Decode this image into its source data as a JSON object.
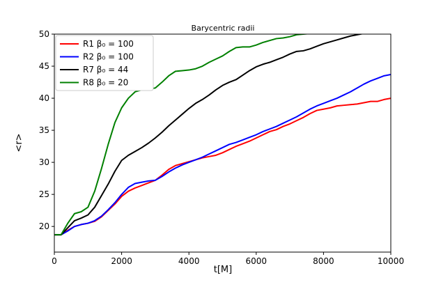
{
  "chart_data": {
    "type": "line",
    "title": "Barycentric radii",
    "xlabel": "t[M]",
    "ylabel": "<r>",
    "xlim": [
      0,
      10000
    ],
    "ylim": [
      16,
      50
    ],
    "xticks": [
      0,
      2000,
      4000,
      6000,
      8000,
      10000
    ],
    "yticks": [
      20,
      25,
      30,
      35,
      40,
      45,
      50
    ],
    "grid": false,
    "legend_position": "top-left",
    "series": [
      {
        "name": "R1  β₀ = 100",
        "color": "#ff0000",
        "points": [
          [
            0,
            18.7
          ],
          [
            200,
            18.7
          ],
          [
            400,
            19.4
          ],
          [
            600,
            20.0
          ],
          [
            800,
            20.3
          ],
          [
            1000,
            20.5
          ],
          [
            1200,
            20.8
          ],
          [
            1400,
            21.5
          ],
          [
            1600,
            22.5
          ],
          [
            1800,
            23.5
          ],
          [
            2000,
            24.7
          ],
          [
            2200,
            25.5
          ],
          [
            2400,
            26.0
          ],
          [
            2600,
            26.4
          ],
          [
            2800,
            26.8
          ],
          [
            3000,
            27.2
          ],
          [
            3200,
            28.0
          ],
          [
            3400,
            28.9
          ],
          [
            3600,
            29.5
          ],
          [
            3800,
            29.8
          ],
          [
            4000,
            30.1
          ],
          [
            4200,
            30.4
          ],
          [
            4400,
            30.7
          ],
          [
            4600,
            30.9
          ],
          [
            4800,
            31.1
          ],
          [
            5000,
            31.5
          ],
          [
            5200,
            32.0
          ],
          [
            5400,
            32.5
          ],
          [
            5600,
            32.9
          ],
          [
            5800,
            33.3
          ],
          [
            6000,
            33.8
          ],
          [
            6200,
            34.3
          ],
          [
            6400,
            34.8
          ],
          [
            6600,
            35.1
          ],
          [
            6800,
            35.6
          ],
          [
            7000,
            36.0
          ],
          [
            7200,
            36.5
          ],
          [
            7400,
            37.0
          ],
          [
            7600,
            37.6
          ],
          [
            7800,
            38.1
          ],
          [
            8000,
            38.3
          ],
          [
            8200,
            38.5
          ],
          [
            8400,
            38.8
          ],
          [
            8600,
            38.9
          ],
          [
            8800,
            39.0
          ],
          [
            9000,
            39.1
          ],
          [
            9200,
            39.3
          ],
          [
            9400,
            39.5
          ],
          [
            9600,
            39.5
          ],
          [
            9800,
            39.8
          ],
          [
            10000,
            40.0
          ]
        ]
      },
      {
        "name": "R2  β₀ = 100",
        "color": "#0000ff",
        "points": [
          [
            0,
            18.7
          ],
          [
            200,
            18.7
          ],
          [
            400,
            19.3
          ],
          [
            600,
            20.0
          ],
          [
            800,
            20.3
          ],
          [
            1000,
            20.5
          ],
          [
            1200,
            20.9
          ],
          [
            1400,
            21.6
          ],
          [
            1600,
            22.6
          ],
          [
            1800,
            23.7
          ],
          [
            2000,
            25.0
          ],
          [
            2200,
            26.1
          ],
          [
            2400,
            26.7
          ],
          [
            2600,
            26.9
          ],
          [
            2800,
            27.1
          ],
          [
            3000,
            27.2
          ],
          [
            3200,
            27.8
          ],
          [
            3400,
            28.5
          ],
          [
            3600,
            29.1
          ],
          [
            3800,
            29.6
          ],
          [
            4000,
            30.0
          ],
          [
            4200,
            30.4
          ],
          [
            4400,
            30.8
          ],
          [
            4600,
            31.3
          ],
          [
            4800,
            31.8
          ],
          [
            5000,
            32.3
          ],
          [
            5200,
            32.8
          ],
          [
            5400,
            33.1
          ],
          [
            5600,
            33.5
          ],
          [
            5800,
            33.9
          ],
          [
            6000,
            34.3
          ],
          [
            6200,
            34.8
          ],
          [
            6400,
            35.2
          ],
          [
            6600,
            35.6
          ],
          [
            6800,
            36.1
          ],
          [
            7000,
            36.6
          ],
          [
            7200,
            37.1
          ],
          [
            7400,
            37.7
          ],
          [
            7600,
            38.3
          ],
          [
            7800,
            38.8
          ],
          [
            8000,
            39.2
          ],
          [
            8200,
            39.6
          ],
          [
            8400,
            40.0
          ],
          [
            8600,
            40.5
          ],
          [
            8800,
            41.0
          ],
          [
            9000,
            41.6
          ],
          [
            9200,
            42.2
          ],
          [
            9400,
            42.7
          ],
          [
            9600,
            43.1
          ],
          [
            9800,
            43.5
          ],
          [
            10000,
            43.7
          ]
        ]
      },
      {
        "name": "R7  β₀ = 44",
        "color": "#000000",
        "points": [
          [
            0,
            18.7
          ],
          [
            200,
            18.7
          ],
          [
            400,
            19.8
          ],
          [
            600,
            20.9
          ],
          [
            800,
            21.3
          ],
          [
            1000,
            21.8
          ],
          [
            1200,
            23.0
          ],
          [
            1400,
            24.8
          ],
          [
            1600,
            26.6
          ],
          [
            1800,
            28.6
          ],
          [
            2000,
            30.3
          ],
          [
            2200,
            31.1
          ],
          [
            2400,
            31.7
          ],
          [
            2600,
            32.3
          ],
          [
            2800,
            33.0
          ],
          [
            3000,
            33.8
          ],
          [
            3200,
            34.7
          ],
          [
            3400,
            35.7
          ],
          [
            3600,
            36.6
          ],
          [
            3800,
            37.5
          ],
          [
            4000,
            38.4
          ],
          [
            4200,
            39.2
          ],
          [
            4400,
            39.8
          ],
          [
            4600,
            40.5
          ],
          [
            4800,
            41.3
          ],
          [
            5000,
            42.0
          ],
          [
            5200,
            42.5
          ],
          [
            5400,
            42.9
          ],
          [
            5600,
            43.6
          ],
          [
            5800,
            44.3
          ],
          [
            6000,
            44.9
          ],
          [
            6200,
            45.3
          ],
          [
            6400,
            45.6
          ],
          [
            6600,
            46.0
          ],
          [
            6800,
            46.4
          ],
          [
            7000,
            46.9
          ],
          [
            7200,
            47.3
          ],
          [
            7400,
            47.4
          ],
          [
            7600,
            47.7
          ],
          [
            7800,
            48.1
          ],
          [
            8000,
            48.5
          ],
          [
            8200,
            48.8
          ],
          [
            8400,
            49.1
          ],
          [
            8600,
            49.4
          ],
          [
            8800,
            49.7
          ],
          [
            9000,
            49.9
          ],
          [
            9200,
            50.1
          ],
          [
            9400,
            50.3
          ],
          [
            9600,
            50.5
          ],
          [
            9800,
            50.6
          ],
          [
            10000,
            50.8
          ]
        ]
      },
      {
        "name": "R8  β₀ = 20",
        "color": "#008000",
        "points": [
          [
            0,
            18.7
          ],
          [
            200,
            18.7
          ],
          [
            400,
            20.5
          ],
          [
            600,
            22.0
          ],
          [
            800,
            22.3
          ],
          [
            1000,
            23.0
          ],
          [
            1200,
            25.5
          ],
          [
            1400,
            29.0
          ],
          [
            1600,
            32.8
          ],
          [
            1800,
            36.2
          ],
          [
            2000,
            38.5
          ],
          [
            2200,
            40.0
          ],
          [
            2400,
            41.0
          ],
          [
            2600,
            41.3
          ],
          [
            2800,
            41.4
          ],
          [
            3000,
            41.6
          ],
          [
            3200,
            42.5
          ],
          [
            3400,
            43.5
          ],
          [
            3600,
            44.2
          ],
          [
            3800,
            44.3
          ],
          [
            4000,
            44.4
          ],
          [
            4200,
            44.6
          ],
          [
            4400,
            45.0
          ],
          [
            4600,
            45.6
          ],
          [
            4800,
            46.1
          ],
          [
            5000,
            46.6
          ],
          [
            5200,
            47.3
          ],
          [
            5400,
            47.9
          ],
          [
            5600,
            48.0
          ],
          [
            5800,
            48.0
          ],
          [
            6000,
            48.3
          ],
          [
            6200,
            48.7
          ],
          [
            6400,
            49.0
          ],
          [
            6600,
            49.3
          ],
          [
            6800,
            49.4
          ],
          [
            7000,
            49.6
          ],
          [
            7200,
            49.9
          ],
          [
            7400,
            50.0
          ],
          [
            7600,
            50.1
          ],
          [
            7800,
            50.2
          ],
          [
            8000,
            50.3
          ],
          [
            8200,
            50.4
          ],
          [
            8400,
            50.5
          ],
          [
            8600,
            50.6
          ],
          [
            8800,
            50.7
          ],
          [
            9000,
            50.8
          ],
          [
            9200,
            50.9
          ],
          [
            9400,
            51.0
          ],
          [
            9600,
            51.1
          ],
          [
            9800,
            51.2
          ],
          [
            10000,
            51.4
          ]
        ]
      }
    ]
  }
}
